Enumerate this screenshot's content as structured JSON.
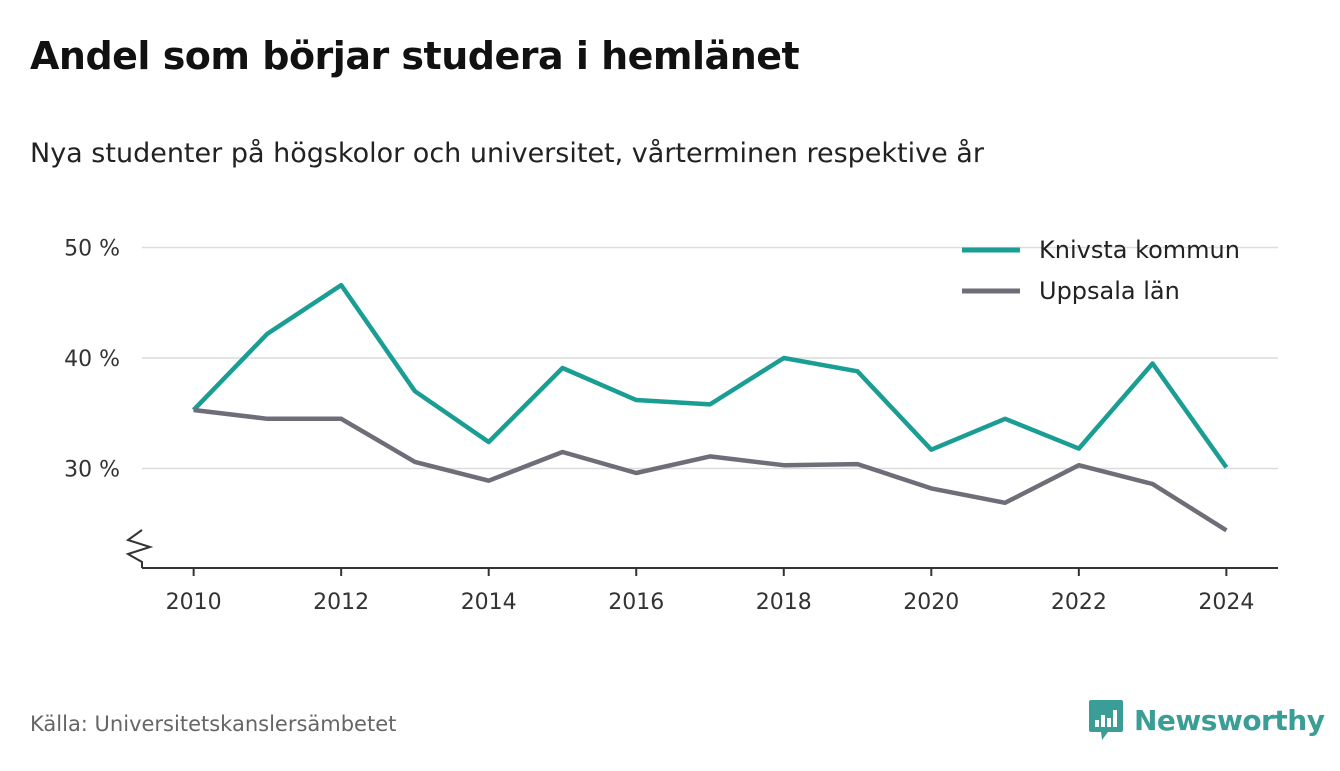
{
  "title": "Andel som börjar studera i hemlänet",
  "subtitle": "Nya studenter på högskolor och universitet, vårterminen respektive år",
  "source": "Källa: Universitetskanslersämbetet",
  "brand": {
    "name": "Newsworthy",
    "icon": "newsworthy-logo-icon",
    "color": "#3a9e96"
  },
  "chart_data": {
    "type": "line",
    "x": [
      2010,
      2011,
      2012,
      2013,
      2014,
      2015,
      2016,
      2017,
      2018,
      2019,
      2020,
      2021,
      2022,
      2023,
      2024
    ],
    "x_ticks": [
      2010,
      2012,
      2014,
      2016,
      2018,
      2020,
      2022,
      2024
    ],
    "x_tick_labels": [
      "2010",
      "2012",
      "2014",
      "2016",
      "2018",
      "2020",
      "2022",
      "2024"
    ],
    "y_ticks": [
      30,
      40,
      50
    ],
    "y_tick_labels": [
      "30 %",
      "40 %",
      "50 %"
    ],
    "ylim": [
      21,
      50
    ],
    "xlim": [
      2009.3,
      2024.7
    ],
    "y_axis_break": true,
    "grid": true,
    "legend": "top-right",
    "series": [
      {
        "name": "Knivsta kommun",
        "color": "#1a9e94",
        "values": [
          35.3,
          42.2,
          46.6,
          37.0,
          32.4,
          39.1,
          36.2,
          35.8,
          40.0,
          38.8,
          31.7,
          34.5,
          31.8,
          39.5,
          30.1
        ]
      },
      {
        "name": "Uppsala län",
        "color": "#6e6e78",
        "values": [
          35.3,
          34.5,
          34.5,
          30.6,
          28.9,
          31.5,
          29.6,
          31.1,
          30.3,
          30.4,
          28.2,
          26.9,
          30.3,
          28.6,
          24.4
        ]
      }
    ]
  }
}
